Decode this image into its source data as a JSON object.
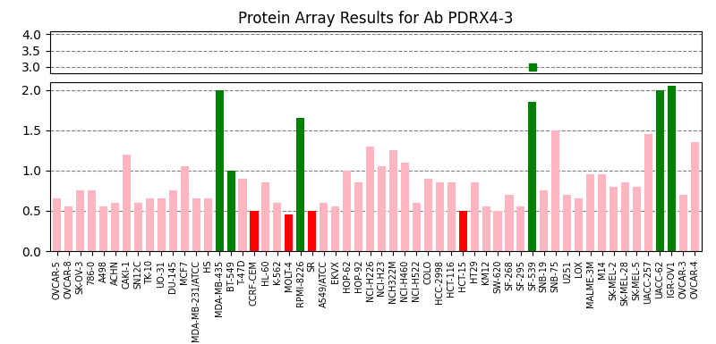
{
  "chart_data": [
    {
      "type": "scatter",
      "title": "Protein Array Results for Ab PDRX4-3",
      "categories": [
        "OVCAR-5",
        "OVCAR-8",
        "SK-OV-3",
        "786-0",
        "A498",
        "ACHN",
        "CAKI-1",
        "SN12C",
        "TK-10",
        "UO-31",
        "DU-145",
        "MCF7",
        "MDA-MB-231/ATCC",
        "HS",
        "MDA-MB-435",
        "BT-549",
        "T-47D",
        "CCRF-CEM",
        "HL-60",
        "K-562",
        "MOLT-4",
        "RPMI-8226",
        "SR",
        "A549/ATCC",
        "EKVX",
        "HOP-62",
        "HOP-92",
        "NCI-H226",
        "NCI-H23",
        "NCH322M",
        "NCI-H460",
        "NCI-H522",
        "COLO",
        "HCC-2998",
        "HCT-116",
        "HCT-15",
        "HT29",
        "KM12",
        "SW-620",
        "SF-268",
        "SF-295",
        "SF-539",
        "SNB-19",
        "SNB-75",
        "U251",
        "LOX",
        "MALME-3M",
        "M14",
        "SK-MEL-2",
        "SK-MEL-28",
        "SK-MEL-5",
        "UACC-257",
        "UACC-62",
        "IGR-OV1",
        "OVCAR-3",
        "OVCAR-4"
      ],
      "values": [
        null,
        null,
        null,
        null,
        null,
        null,
        null,
        null,
        null,
        null,
        null,
        null,
        null,
        null,
        null,
        null,
        null,
        null,
        null,
        null,
        null,
        null,
        null,
        null,
        null,
        null,
        null,
        null,
        null,
        null,
        null,
        null,
        null,
        null,
        null,
        null,
        null,
        null,
        null,
        null,
        null,
        3.0,
        null,
        null,
        null,
        null,
        null,
        null,
        null,
        null,
        null,
        null,
        null,
        null,
        null,
        null
      ],
      "color": "green",
      "marker": "square",
      "ylim": [
        2.8,
        4.1
      ],
      "yticks": [
        {
          "value": 3.0,
          "label": "3.0"
        },
        3.5,
        {
          "value": 4.0,
          "label": "4.0"
        }
      ],
      "grid": true,
      "tick_labels": "y"
    },
    {
      "type": "bar",
      "categories": [
        "OVCAR-5",
        "OVCAR-8",
        "SK-OV-3",
        "786-0",
        "A498",
        "ACHN",
        "CAKI-1",
        "SN12C",
        "TK-10",
        "UO-31",
        "DU-145",
        "MCF7",
        "MDA-MB-231/ATCC",
        "HS",
        "MDA-MB-435",
        "BT-549",
        "T-47D",
        "CCRF-CEM",
        "HL-60",
        "K-562",
        "MOLT-4",
        "RPMI-8226",
        "SR",
        "A549/ATCC",
        "EKVX",
        "HOP-62",
        "HOP-92",
        "NCI-H226",
        "NCI-H23",
        "NCH322M",
        "NCI-H460",
        "NCI-H522",
        "COLO",
        "HCC-2998",
        "HCT-116",
        "HCT-15",
        "HT29",
        "KM12",
        "SW-620",
        "SF-268",
        "SF-295",
        "SF-539",
        "SNB-19",
        "SNB-75",
        "U251",
        "LOX",
        "MALME-3M",
        "M14",
        "SK-MEL-2",
        "SK-MEL-28",
        "SK-MEL-5",
        "UACC-257",
        "UACC-62",
        "IGR-OV1",
        "OVCAR-3",
        "OVCAR-4"
      ],
      "values": [
        0.65,
        0.55,
        0.75,
        0.75,
        0.55,
        0.6,
        1.2,
        0.6,
        0.65,
        0.65,
        0.75,
        1.05,
        0.65,
        0.65,
        2.0,
        1.0,
        0.9,
        0.5,
        0.85,
        0.6,
        0.45,
        1.65,
        0.5,
        0.6,
        0.55,
        1.0,
        0.85,
        1.3,
        1.05,
        1.25,
        1.1,
        0.6,
        0.9,
        0.85,
        0.85,
        0.5,
        0.85,
        0.55,
        0.5,
        0.7,
        0.55,
        1.85,
        0.75,
        1.5,
        0.7,
        0.65,
        0.95,
        0.95,
        0.8,
        0.85,
        0.8,
        1.45,
        2.0,
        2.05,
        0.7,
        1.35
      ],
      "colors": [
        "lightpink",
        "lightpink",
        "lightpink",
        "lightpink",
        "lightpink",
        "lightpink",
        "lightpink",
        "lightpink",
        "lightpink",
        "lightpink",
        "lightpink",
        "lightpink",
        "lightpink",
        "lightpink",
        "green",
        "green",
        "lightpink",
        "red",
        "lightpink",
        "lightpink",
        "red",
        "green",
        "red",
        "lightpink",
        "lightpink",
        "lightpink",
        "lightpink",
        "lightpink",
        "lightpink",
        "lightpink",
        "lightpink",
        "lightpink",
        "lightpink",
        "lightpink",
        "lightpink",
        "red",
        "lightpink",
        "lightpink",
        "lightpink",
        "lightpink",
        "lightpink",
        "green",
        "lightpink",
        "lightpink",
        "lightpink",
        "lightpink",
        "lightpink",
        "lightpink",
        "lightpink",
        "lightpink",
        "lightpink",
        "lightpink",
        "green",
        "green",
        "lightpink",
        "lightpink"
      ],
      "ylim": [
        0.0,
        2.1
      ],
      "yticks": [
        {
          "value": 0.0,
          "label": "0.0"
        },
        0.5,
        {
          "value": 1.0,
          "label": "1.0"
        },
        1.5,
        {
          "value": 2.0,
          "label": "2.0"
        }
      ],
      "grid": true
    }
  ]
}
